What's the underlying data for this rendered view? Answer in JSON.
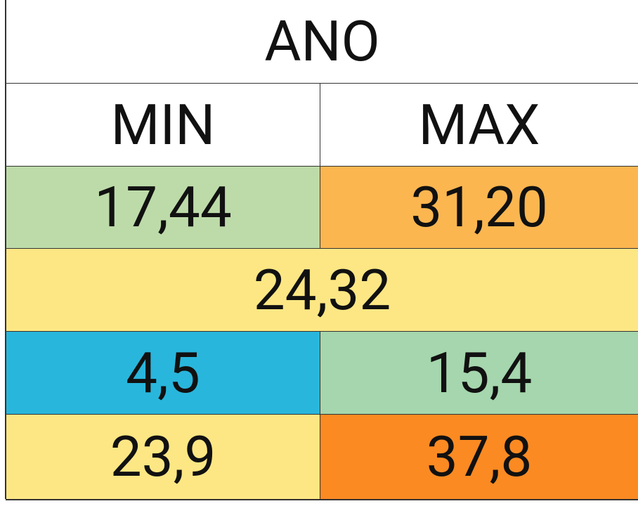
{
  "table": {
    "title": "ANO",
    "columns": [
      "MIN",
      "MAX"
    ],
    "rows": [
      [
        {
          "text": "17,44",
          "color": "#bddba9"
        },
        {
          "text": "31,20",
          "color": "#fbb650"
        }
      ],
      [
        {
          "text": "24,32",
          "color": "#fde784"
        }
      ],
      [
        {
          "text": "4,5",
          "color": "#29b6dc"
        },
        {
          "text": "15,4",
          "color": "#a5d6ad"
        }
      ],
      [
        {
          "text": "23,9",
          "color": "#fde784"
        },
        {
          "text": "37,8",
          "color": "#fb8a22"
        }
      ]
    ]
  }
}
